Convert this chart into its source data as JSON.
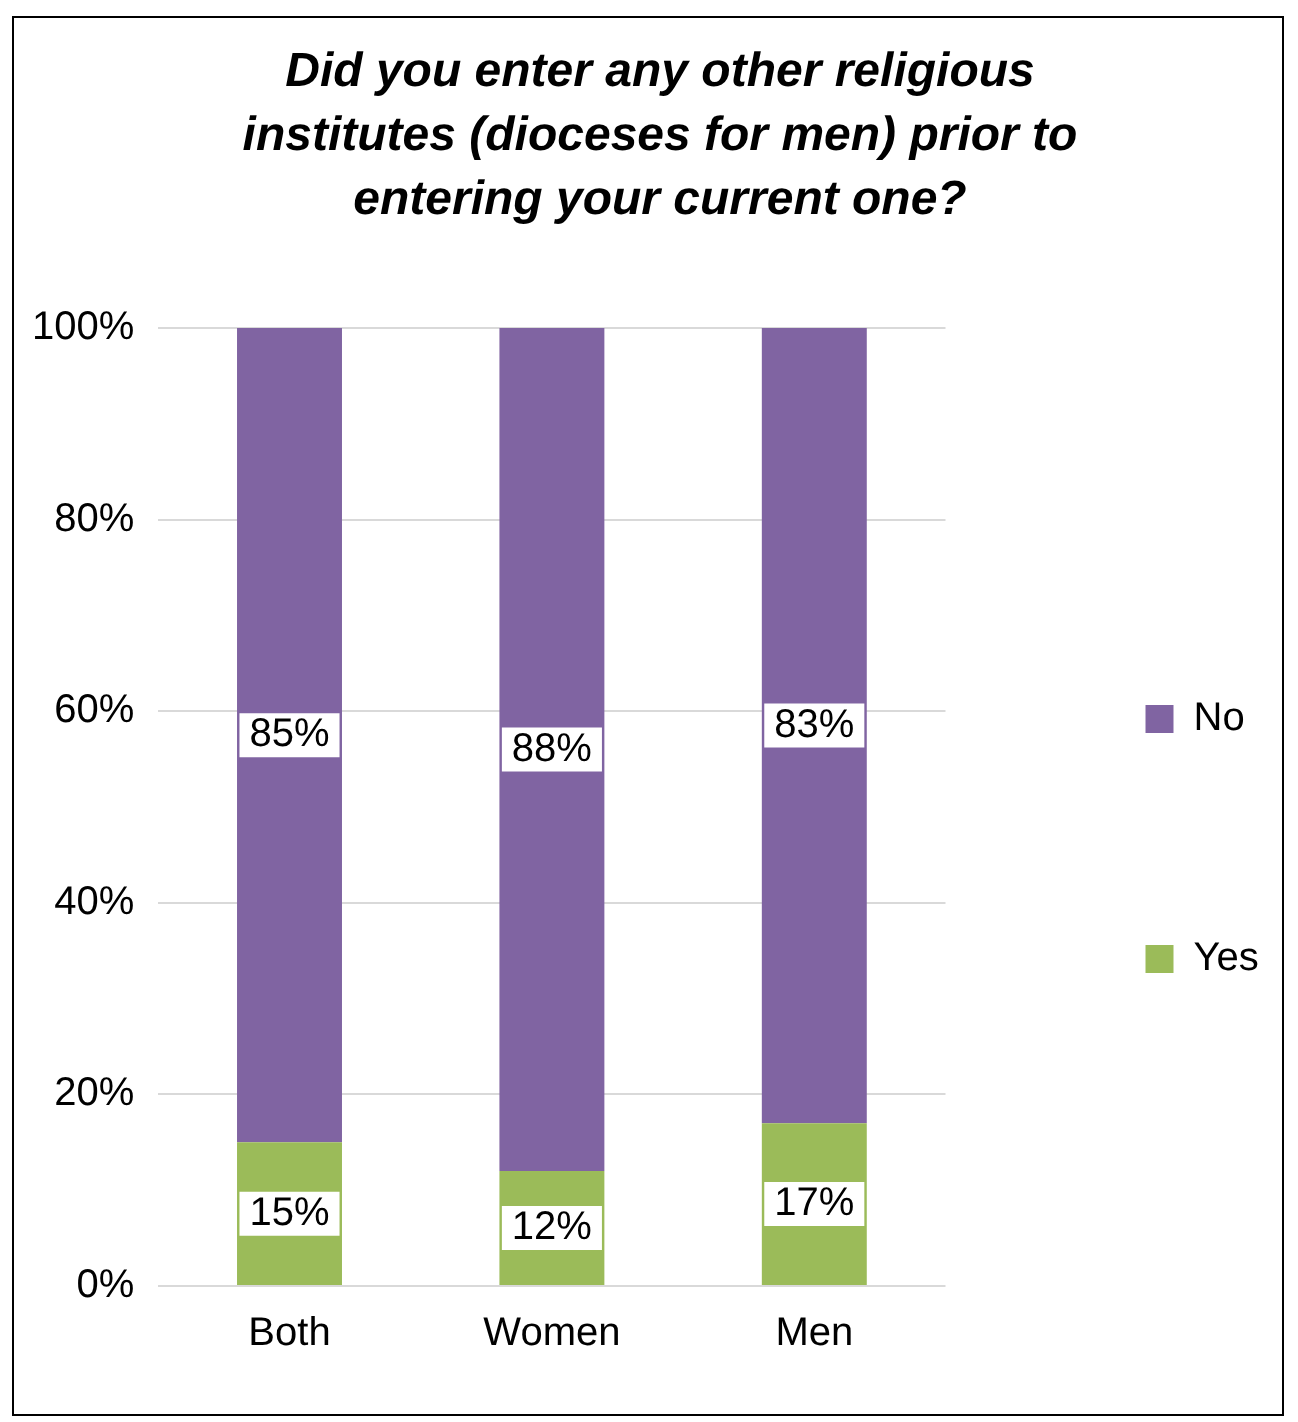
{
  "chart_data": {
    "type": "bar",
    "title": "Did you enter any other religious institutes (dioceses for men) prior to entering your current one?",
    "categories": [
      "Both",
      "Women",
      "Men"
    ],
    "stacked": true,
    "series": [
      {
        "name": "Yes",
        "color": "#9bbb59",
        "values": [
          15,
          12,
          17
        ]
      },
      {
        "name": "No",
        "color": "#8064a2",
        "values": [
          85,
          88,
          83
        ]
      }
    ],
    "ylim": [
      0,
      100
    ],
    "yticks": [
      {
        "value": 0,
        "label": "0%"
      },
      {
        "value": 20,
        "label": "20%"
      },
      {
        "value": 40,
        "label": "40%"
      },
      {
        "value": 60,
        "label": "60%"
      },
      {
        "value": 80,
        "label": "80%"
      },
      {
        "value": 100,
        "label": "100%"
      }
    ],
    "grid": "y",
    "legend": "right",
    "value_labels": [
      [
        "15%",
        "12%",
        "17%"
      ],
      [
        "85%",
        "88%",
        "83%"
      ]
    ]
  }
}
